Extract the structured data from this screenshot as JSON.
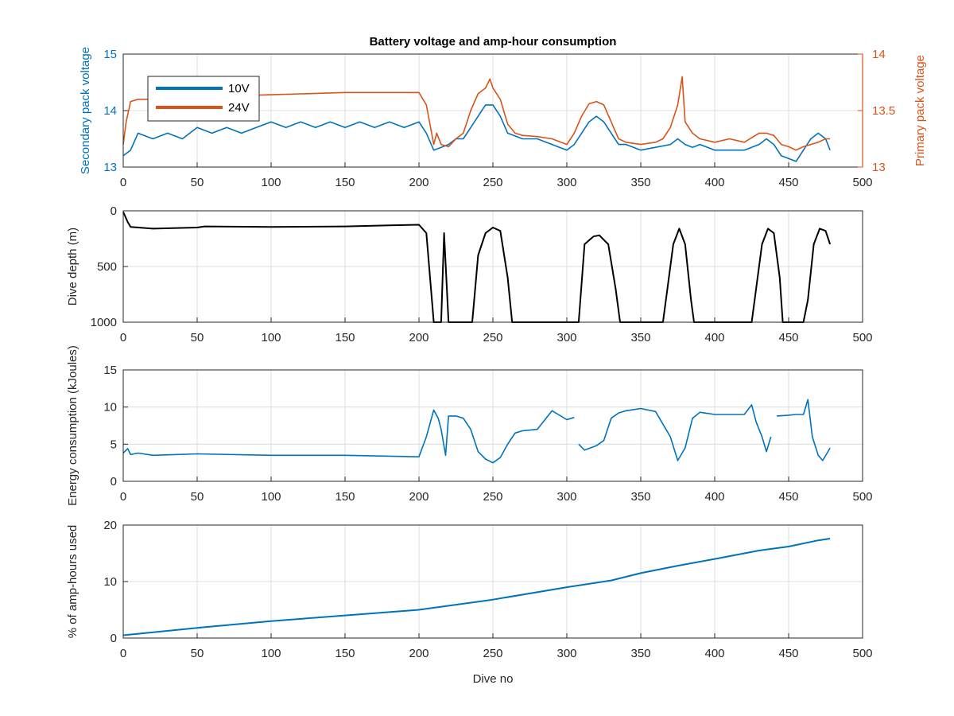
{
  "figure": {
    "title": "Battery voltage and amp-hour consumption",
    "colors": {
      "blue": "#0072BD",
      "orange": "#D95319",
      "black": "#000000",
      "axis": "#262626"
    }
  },
  "chart_data": [
    {
      "type": "line",
      "title": "Battery voltage and amp-hour consumption",
      "xlabel": "",
      "ylabel": "Secondary pack voltage",
      "ylabel_right": "Primary pack voltage",
      "xlim": [
        0,
        500
      ],
      "ylim": [
        13,
        15
      ],
      "ylim_right": [
        13,
        14
      ],
      "xticks": [
        "0",
        "50",
        "100",
        "150",
        "200",
        "250",
        "300",
        "350",
        "400",
        "450",
        "500"
      ],
      "yticks": [
        "13",
        "14",
        "15"
      ],
      "yticks_right": [
        "13",
        "13.5",
        "14"
      ],
      "grid": true,
      "legend": {
        "placement": "top-left",
        "entries": [
          "10V",
          "24V"
        ]
      },
      "series": [
        {
          "name": "10V",
          "axis": "left",
          "color": "#0072BD",
          "x": [
            0,
            5,
            10,
            20,
            30,
            40,
            50,
            60,
            70,
            80,
            90,
            100,
            110,
            120,
            130,
            140,
            150,
            160,
            170,
            180,
            190,
            200,
            205,
            210,
            215,
            220,
            225,
            230,
            235,
            240,
            245,
            250,
            255,
            260,
            265,
            270,
            280,
            290,
            300,
            305,
            310,
            315,
            320,
            325,
            330,
            335,
            340,
            350,
            360,
            370,
            375,
            380,
            385,
            390,
            400,
            410,
            420,
            430,
            435,
            440,
            445,
            450,
            455,
            460,
            465,
            470,
            475,
            478
          ],
          "y": [
            13.2,
            13.3,
            13.6,
            13.5,
            13.6,
            13.5,
            13.7,
            13.6,
            13.7,
            13.6,
            13.7,
            13.8,
            13.7,
            13.8,
            13.7,
            13.8,
            13.7,
            13.8,
            13.7,
            13.8,
            13.7,
            13.8,
            13.6,
            13.3,
            13.35,
            13.4,
            13.5,
            13.5,
            13.7,
            13.9,
            14.1,
            14.1,
            13.9,
            13.6,
            13.55,
            13.5,
            13.5,
            13.4,
            13.3,
            13.4,
            13.6,
            13.8,
            13.9,
            13.8,
            13.6,
            13.4,
            13.4,
            13.3,
            13.35,
            13.4,
            13.5,
            13.4,
            13.35,
            13.4,
            13.3,
            13.3,
            13.3,
            13.4,
            13.5,
            13.4,
            13.2,
            13.15,
            13.1,
            13.3,
            13.5,
            13.6,
            13.5,
            13.3
          ]
        },
        {
          "name": "24V",
          "axis": "right",
          "color": "#D95319",
          "x": [
            0,
            2,
            5,
            10,
            15,
            20,
            50,
            100,
            150,
            200,
            205,
            210,
            212,
            215,
            220,
            225,
            230,
            235,
            240,
            245,
            248,
            250,
            255,
            260,
            265,
            270,
            280,
            290,
            300,
            305,
            310,
            315,
            320,
            325,
            330,
            335,
            340,
            350,
            360,
            365,
            370,
            375,
            378,
            380,
            385,
            390,
            400,
            410,
            420,
            430,
            435,
            440,
            445,
            450,
            455,
            460,
            465,
            470,
            475,
            478
          ],
          "y": [
            13.2,
            13.4,
            13.58,
            13.6,
            13.6,
            13.6,
            13.62,
            13.64,
            13.66,
            13.66,
            13.55,
            13.2,
            13.3,
            13.2,
            13.18,
            13.25,
            13.3,
            13.5,
            13.65,
            13.7,
            13.78,
            13.7,
            13.6,
            13.38,
            13.3,
            13.28,
            13.27,
            13.25,
            13.2,
            13.3,
            13.45,
            13.56,
            13.58,
            13.55,
            13.4,
            13.25,
            13.22,
            13.2,
            13.22,
            13.25,
            13.35,
            13.55,
            13.8,
            13.4,
            13.3,
            13.25,
            13.22,
            13.25,
            13.22,
            13.3,
            13.3,
            13.28,
            13.2,
            13.18,
            13.15,
            13.18,
            13.2,
            13.22,
            13.25,
            13.25
          ]
        }
      ]
    },
    {
      "type": "line",
      "xlabel": "",
      "ylabel": "Dive depth (m)",
      "xlim": [
        0,
        500
      ],
      "ylim": [
        0,
        1000
      ],
      "y_reversed": true,
      "xticks": [
        "0",
        "50",
        "100",
        "150",
        "200",
        "250",
        "300",
        "350",
        "400",
        "450",
        "500"
      ],
      "yticks": [
        "0",
        "500",
        "1000"
      ],
      "grid": true,
      "series": [
        {
          "color": "#000000",
          "x": [
            0,
            3,
            5,
            20,
            50,
            55,
            100,
            150,
            180,
            200,
            205,
            210,
            212,
            215,
            217,
            220,
            222,
            225,
            232,
            236,
            240,
            245,
            250,
            255,
            260,
            263,
            300,
            308,
            312,
            318,
            322,
            328,
            333,
            336,
            365,
            368,
            372,
            376,
            380,
            384,
            386,
            425,
            428,
            432,
            436,
            440,
            444,
            446,
            460,
            463,
            467,
            471,
            475,
            478
          ],
          "y": [
            10,
            100,
            145,
            160,
            150,
            140,
            145,
            140,
            130,
            125,
            200,
            1000,
            1000,
            1000,
            200,
            1000,
            1000,
            1000,
            1000,
            1000,
            400,
            200,
            150,
            180,
            600,
            1000,
            1000,
            1000,
            300,
            230,
            220,
            300,
            700,
            1000,
            1000,
            700,
            300,
            160,
            300,
            800,
            1000,
            1000,
            700,
            300,
            160,
            200,
            600,
            1000,
            1000,
            800,
            300,
            160,
            180,
            300
          ]
        }
      ]
    },
    {
      "type": "line",
      "xlabel": "",
      "ylabel": "Energy consumption (kJoules)",
      "xlim": [
        0,
        500
      ],
      "ylim": [
        0,
        15
      ],
      "xticks": [
        "0",
        "50",
        "100",
        "150",
        "200",
        "250",
        "300",
        "350",
        "400",
        "450",
        "500"
      ],
      "yticks": [
        "0",
        "5",
        "10",
        "15"
      ],
      "grid": true,
      "series": [
        {
          "color": "#0072BD",
          "x": [
            0,
            3,
            5,
            10,
            20,
            50,
            100,
            150,
            200,
            205,
            210,
            213,
            215,
            218,
            220,
            225,
            230,
            235,
            240,
            245,
            250,
            255,
            260,
            265,
            270,
            280,
            290,
            300,
            305
          ],
          "y": [
            3.8,
            4.4,
            3.6,
            3.8,
            3.5,
            3.7,
            3.5,
            3.5,
            3.3,
            6.0,
            9.6,
            8.5,
            7.0,
            3.5,
            8.8,
            8.8,
            8.5,
            7.0,
            4.0,
            3.0,
            2.5,
            3.2,
            5.0,
            6.5,
            6.8,
            7.0,
            9.5,
            8.3,
            8.6
          ]
        },
        {
          "color": "#0072BD",
          "x": [
            308,
            312,
            320,
            325,
            330,
            335,
            340,
            350,
            360,
            370,
            375,
            380,
            385,
            390,
            400,
            410,
            420,
            425,
            428,
            432,
            435,
            438
          ],
          "y": [
            5.0,
            4.2,
            4.8,
            5.5,
            8.5,
            9.2,
            9.5,
            9.8,
            9.4,
            6.0,
            2.8,
            4.5,
            8.5,
            9.3,
            9.0,
            9.0,
            9.0,
            10.3,
            8.0,
            6.0,
            4.0,
            6.0
          ]
        },
        {
          "color": "#0072BD",
          "x": [
            442,
            450,
            455,
            460,
            463,
            466,
            470,
            473,
            476,
            478
          ],
          "y": [
            8.8,
            8.9,
            9.0,
            9.0,
            11.0,
            6.0,
            3.5,
            2.8,
            3.8,
            4.5
          ]
        }
      ]
    },
    {
      "type": "line",
      "xlabel": "Dive no",
      "ylabel": "% of amp-hours used",
      "xlim": [
        0,
        500
      ],
      "ylim": [
        0,
        20
      ],
      "xticks": [
        "0",
        "50",
        "100",
        "150",
        "200",
        "250",
        "300",
        "350",
        "400",
        "450",
        "500"
      ],
      "yticks": [
        "0",
        "10",
        "20"
      ],
      "grid": true,
      "series": [
        {
          "color": "#0072BD",
          "x": [
            0,
            50,
            100,
            150,
            200,
            250,
            300,
            330,
            350,
            375,
            400,
            430,
            450,
            470,
            478
          ],
          "y": [
            0.5,
            1.8,
            3.0,
            4.0,
            5.0,
            6.8,
            9.0,
            10.2,
            11.5,
            12.8,
            14.0,
            15.5,
            16.2,
            17.3,
            17.6
          ]
        }
      ]
    }
  ]
}
